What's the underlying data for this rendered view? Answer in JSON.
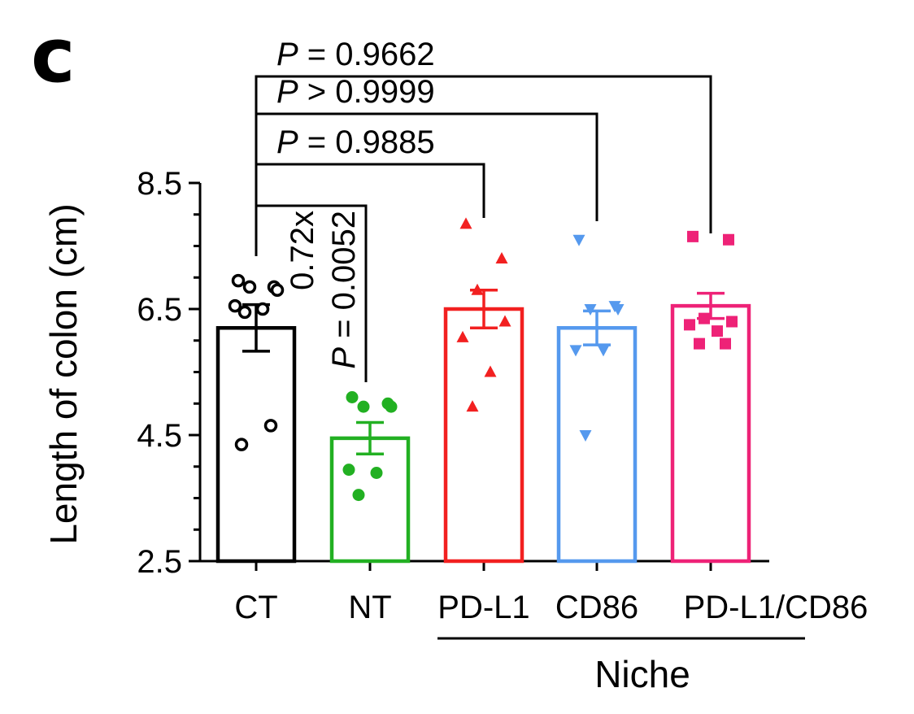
{
  "panel_label": "c",
  "chart_data": {
    "type": "bar",
    "ylabel": "Length of colon (cm)",
    "ylim": [
      2.5,
      8.5
    ],
    "yticks": [
      "2.5",
      "4.5",
      "6.5",
      "8.5"
    ],
    "categories": [
      "CT",
      "NT",
      "PD-L1",
      "CD86",
      "PD-L1/CD86"
    ],
    "group_label": "Niche",
    "grouped_categories": [
      "PD-L1",
      "CD86",
      "PD-L1/CD86"
    ],
    "bars": [
      {
        "category": "CT",
        "mean": 6.2,
        "sem": 0.37,
        "color": "#000000",
        "marker": "open-circle",
        "points": [
          6.95,
          6.85,
          6.85,
          6.8,
          6.55,
          6.5,
          6.45,
          4.65,
          4.35
        ]
      },
      {
        "category": "NT",
        "mean": 4.45,
        "sem": 0.25,
        "color": "#22b022",
        "marker": "circle",
        "points": [
          5.1,
          5.0,
          4.95,
          4.95,
          3.95,
          3.9,
          3.55
        ]
      },
      {
        "category": "PD-L1",
        "mean": 6.5,
        "sem": 0.3,
        "color": "#f22020",
        "marker": "triangle-up",
        "points": [
          7.85,
          7.3,
          6.8,
          6.3,
          6.05,
          5.5,
          4.95
        ]
      },
      {
        "category": "CD86",
        "mean": 6.2,
        "sem": 0.27,
        "color": "#5599ee",
        "marker": "triangle-down",
        "points": [
          7.6,
          6.55,
          6.5,
          6.5,
          5.85,
          5.85,
          4.5
        ]
      },
      {
        "category": "PD-L1/CD86",
        "mean": 6.55,
        "sem": 0.2,
        "color": "#ee2277",
        "marker": "square",
        "points": [
          7.65,
          7.6,
          6.35,
          6.3,
          6.25,
          6.15,
          5.95,
          5.95
        ]
      }
    ],
    "comparisons": [
      {
        "from": "CT",
        "to": "NT",
        "label_italic": "P",
        "label_rest": " = 0.0052",
        "fold": "0.72x"
      },
      {
        "from": "CT",
        "to": "PD-L1",
        "label_italic": "P",
        "label_rest": " = 0.9885"
      },
      {
        "from": "CT",
        "to": "CD86",
        "label_italic": "P",
        "label_rest": " > 0.9999"
      },
      {
        "from": "CT",
        "to": "PD-L1/CD86",
        "label_italic": "P",
        "label_rest": " = 0.9662"
      }
    ]
  }
}
